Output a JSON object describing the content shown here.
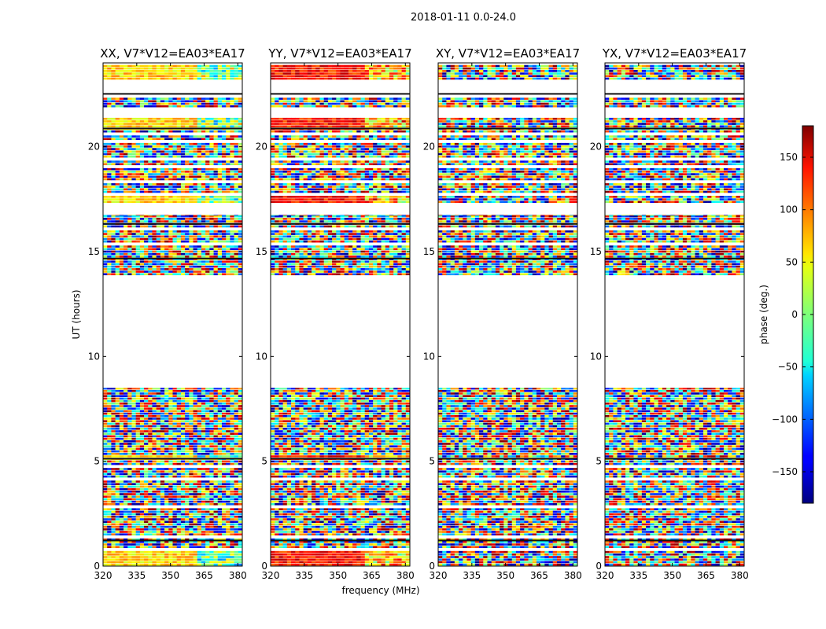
{
  "suptitle": "2018-01-11 0.0-24.0",
  "chart_data": {
    "type": "heatmap",
    "title": "2018-01-11 0.0-24.0",
    "xlabel": "frequency (MHz)",
    "ylabel": "UT (hours)",
    "xlim": [
      320,
      382
    ],
    "ylim": [
      0,
      24
    ],
    "xticks": [
      320,
      335,
      350,
      365,
      380
    ],
    "yticks": [
      0,
      5,
      10,
      15,
      20
    ],
    "panels": [
      {
        "title": "XX, V7*V12=EA03*EA17",
        "pol": "XX"
      },
      {
        "title": "YY, V7*V12=EA03*EA17",
        "pol": "YY"
      },
      {
        "title": "XY, V7*V12=EA03*EA17",
        "pol": "XY"
      },
      {
        "title": "YX, V7*V12=EA03*EA17",
        "pol": "YX"
      }
    ],
    "data_blocks_ut": [
      [
        0.0,
        8.5
      ],
      [
        13.85,
        16.75
      ],
      [
        17.3,
        23.9
      ]
    ],
    "empty_gap_ut": [
      8.5,
      13.85
    ],
    "colorbar": {
      "label": "phase (deg.)",
      "range": [
        -180,
        180
      ],
      "ticks": [
        -150,
        -100,
        -50,
        0,
        50,
        100,
        150
      ],
      "tick_labels": [
        "−150",
        "−100",
        "−50",
        "0",
        "50",
        "100",
        "150"
      ],
      "colormap": "jet"
    }
  }
}
